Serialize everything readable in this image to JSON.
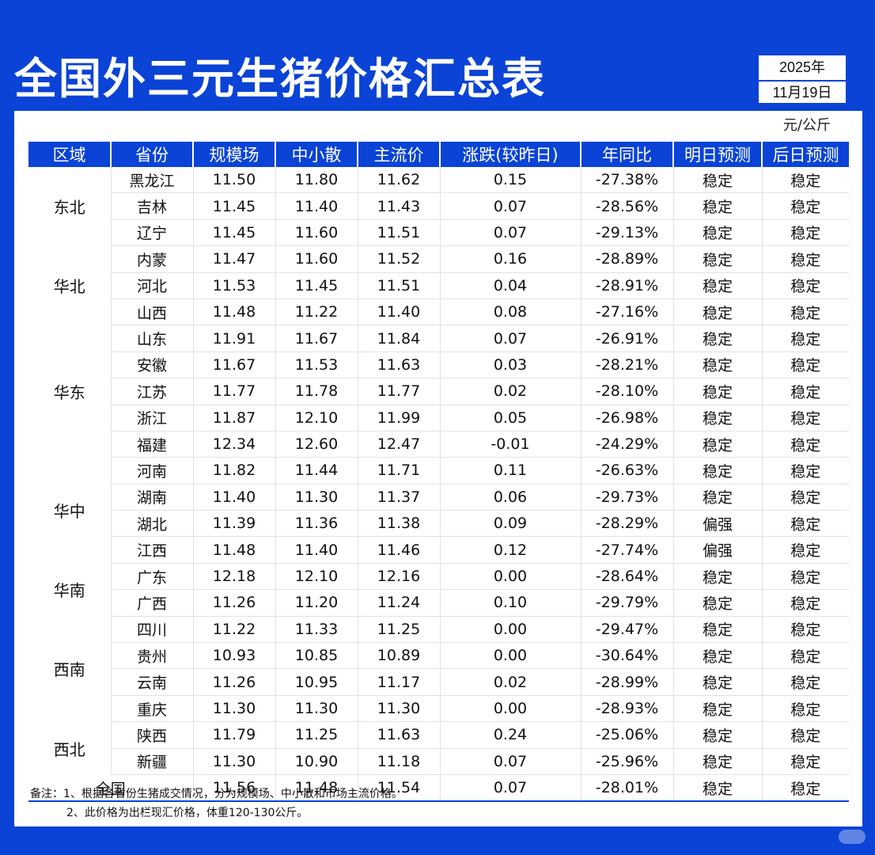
{
  "title": "全国外三元生猪价格汇总表",
  "date": {
    "year": "2025年",
    "month_day": "11月19日"
  },
  "unit": "元/公斤",
  "headers": [
    "区域",
    "省份",
    "规模场",
    "中小散",
    "主流价",
    "涨跌(较昨日)",
    "年同比",
    "明日预测",
    "后日预测"
  ],
  "regions": [
    {
      "name": "东北",
      "rows": [
        [
          "黑龙江",
          "11.50",
          "11.80",
          "11.62",
          "0.15",
          "-27.38%",
          "稳定",
          "稳定"
        ],
        [
          "吉林",
          "11.45",
          "11.40",
          "11.43",
          "0.07",
          "-28.56%",
          "稳定",
          "稳定"
        ],
        [
          "辽宁",
          "11.45",
          "11.60",
          "11.51",
          "0.07",
          "-29.13%",
          "稳定",
          "稳定"
        ]
      ]
    },
    {
      "name": "华北",
      "rows": [
        [
          "内蒙",
          "11.47",
          "11.60",
          "11.52",
          "0.16",
          "-28.89%",
          "稳定",
          "稳定"
        ],
        [
          "河北",
          "11.53",
          "11.45",
          "11.51",
          "0.04",
          "-28.91%",
          "稳定",
          "稳定"
        ],
        [
          "山西",
          "11.48",
          "11.22",
          "11.40",
          "0.08",
          "-27.16%",
          "稳定",
          "稳定"
        ]
      ]
    },
    {
      "name": "华东",
      "rows": [
        [
          "山东",
          "11.91",
          "11.67",
          "11.84",
          "0.07",
          "-26.91%",
          "稳定",
          "稳定"
        ],
        [
          "安徽",
          "11.67",
          "11.53",
          "11.63",
          "0.03",
          "-28.21%",
          "稳定",
          "稳定"
        ],
        [
          "江苏",
          "11.77",
          "11.78",
          "11.77",
          "0.02",
          "-28.10%",
          "稳定",
          "稳定"
        ],
        [
          "浙江",
          "11.87",
          "12.10",
          "11.99",
          "0.05",
          "-26.98%",
          "稳定",
          "稳定"
        ],
        [
          "福建",
          "12.34",
          "12.60",
          "12.47",
          "-0.01",
          "-24.29%",
          "稳定",
          "稳定"
        ]
      ]
    },
    {
      "name": "华中",
      "rows": [
        [
          "河南",
          "11.82",
          "11.44",
          "11.71",
          "0.11",
          "-26.63%",
          "稳定",
          "稳定"
        ],
        [
          "湖南",
          "11.40",
          "11.30",
          "11.37",
          "0.06",
          "-29.73%",
          "稳定",
          "稳定"
        ],
        [
          "湖北",
          "11.39",
          "11.36",
          "11.38",
          "0.09",
          "-28.29%",
          "偏强",
          "稳定"
        ],
        [
          "江西",
          "11.48",
          "11.40",
          "11.46",
          "0.12",
          "-27.74%",
          "偏强",
          "稳定"
        ]
      ]
    },
    {
      "name": "华南",
      "rows": [
        [
          "广东",
          "12.18",
          "12.10",
          "12.16",
          "0.00",
          "-28.64%",
          "稳定",
          "稳定"
        ],
        [
          "广西",
          "11.26",
          "11.20",
          "11.24",
          "0.10",
          "-29.79%",
          "稳定",
          "稳定"
        ]
      ]
    },
    {
      "name": "西南",
      "rows": [
        [
          "四川",
          "11.22",
          "11.33",
          "11.25",
          "0.00",
          "-29.47%",
          "稳定",
          "稳定"
        ],
        [
          "贵州",
          "10.93",
          "10.85",
          "10.89",
          "0.00",
          "-30.64%",
          "稳定",
          "稳定"
        ],
        [
          "云南",
          "11.26",
          "10.95",
          "11.17",
          "0.02",
          "-28.99%",
          "稳定",
          "稳定"
        ],
        [
          "重庆",
          "11.30",
          "11.30",
          "11.30",
          "0.00",
          "-28.93%",
          "稳定",
          "稳定"
        ]
      ]
    },
    {
      "name": "西北",
      "rows": [
        [
          "陕西",
          "11.79",
          "11.25",
          "11.63",
          "0.24",
          "-25.06%",
          "稳定",
          "稳定"
        ],
        [
          "新疆",
          "11.30",
          "10.90",
          "11.18",
          "0.07",
          "-25.96%",
          "稳定",
          "稳定"
        ]
      ]
    }
  ],
  "national": [
    "全国",
    "11.56",
    "11.48",
    "11.54",
    "0.07",
    "-28.01%",
    "稳定",
    "稳定"
  ],
  "notes": [
    "备注：1、根据各省份生猪成交情况，分为规模场、中小散和市场主流价格。",
    "2、此价格为出栏现汇价格，体重120-130公斤。"
  ],
  "colors": {
    "brand": "#0a43d6",
    "up": "#e0263d",
    "down": "#1fb84d"
  }
}
